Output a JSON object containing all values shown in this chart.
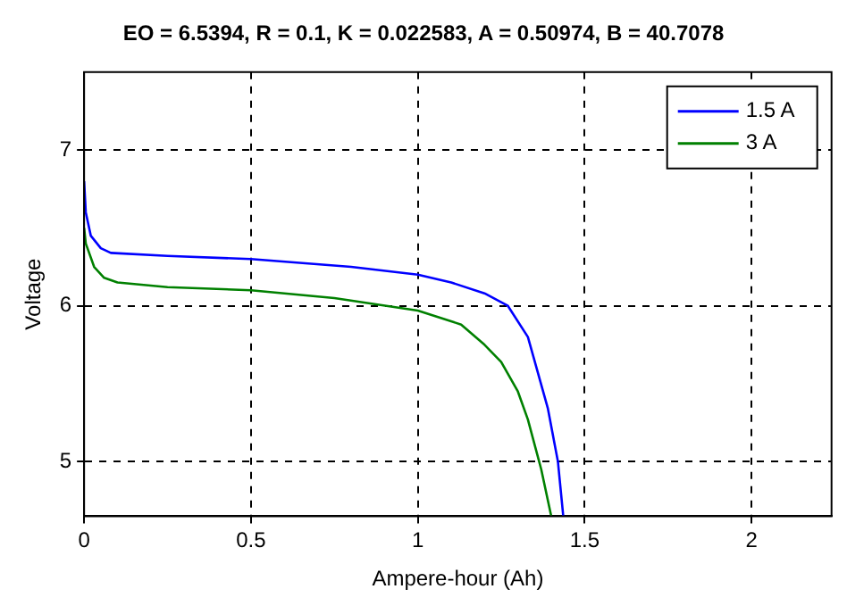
{
  "chart_data": {
    "type": "line",
    "title": "EO = 6.5394, R = 0.1, K = 0.022583, A = 0.50974, B = 40.7078",
    "xlabel": "Ampere-hour (Ah)",
    "ylabel": "Voltage",
    "xlim": [
      0,
      2.24
    ],
    "xticks": [
      0,
      0.5,
      1,
      1.5,
      2
    ],
    "ylim": [
      4.65,
      7.5
    ],
    "yticks": [
      5,
      6,
      7
    ],
    "grid": true,
    "legend": "top right",
    "marker": "none",
    "line_style": "solid",
    "series": [
      {
        "name": "1.5 A",
        "color": "#0000ff",
        "x": [
          0,
          0.005,
          0.02,
          0.05,
          0.08,
          0.25,
          0.5,
          0.8,
          1.0,
          1.1,
          1.2,
          1.27,
          1.33,
          1.39,
          1.42,
          1.436
        ],
        "values": [
          6.8,
          6.6,
          6.45,
          6.37,
          6.34,
          6.32,
          6.3,
          6.25,
          6.2,
          6.15,
          6.08,
          6.0,
          5.8,
          5.34,
          5.0,
          4.65
        ]
      },
      {
        "name": "3 A",
        "color": "#008000",
        "x": [
          0,
          0.005,
          0.03,
          0.06,
          0.1,
          0.25,
          0.5,
          0.75,
          1.0,
          1.13,
          1.2,
          1.25,
          1.3,
          1.33,
          1.37,
          1.4
        ],
        "values": [
          6.5,
          6.4,
          6.25,
          6.18,
          6.15,
          6.12,
          6.1,
          6.05,
          5.97,
          5.88,
          5.75,
          5.64,
          5.45,
          5.27,
          4.95,
          4.65
        ]
      }
    ]
  }
}
